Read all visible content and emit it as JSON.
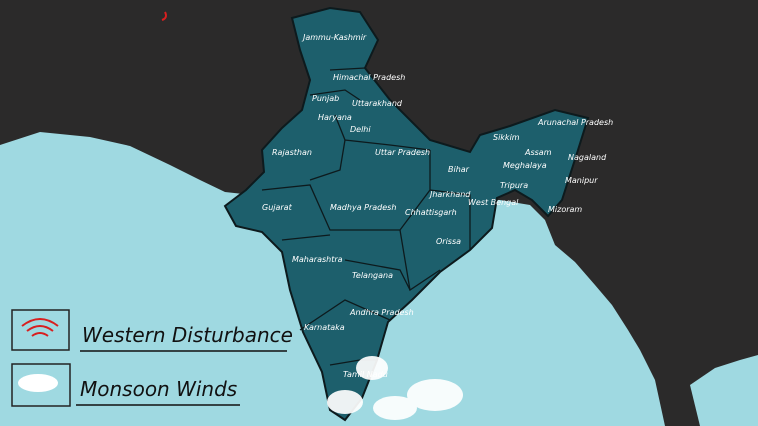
{
  "colors": {
    "land_dark": "#2b2a2a",
    "sea": "#9fd9e1",
    "india": "#1d5f6c",
    "border": "#0d1a1d",
    "disturbance": "#d81f1f",
    "cloud": "#ffffff"
  },
  "legend": {
    "items": [
      {
        "label": "Western Disturbance",
        "icon": "red-wave-icon"
      },
      {
        "label": "Monsoon Winds",
        "icon": "cloud-icon"
      }
    ]
  },
  "states": [
    {
      "name": "Jammu-Kashmir"
    },
    {
      "name": "Himachal Pradesh"
    },
    {
      "name": "Punjab"
    },
    {
      "name": "Uttarakhand"
    },
    {
      "name": "Haryana"
    },
    {
      "name": "Delhi"
    },
    {
      "name": "Rajasthan"
    },
    {
      "name": "Uttar Pradesh"
    },
    {
      "name": "Bihar"
    },
    {
      "name": "Sikkim"
    },
    {
      "name": "Arunachal Pradesh"
    },
    {
      "name": "Assam"
    },
    {
      "name": "Meghalaya"
    },
    {
      "name": "Nagaland"
    },
    {
      "name": "Manipur"
    },
    {
      "name": "Tripura"
    },
    {
      "name": "Mizoram"
    },
    {
      "name": "Jharkhand"
    },
    {
      "name": "West Bengal"
    },
    {
      "name": "Gujarat"
    },
    {
      "name": "Madhya Pradesh"
    },
    {
      "name": "Chhattisgarh"
    },
    {
      "name": "Orissa"
    },
    {
      "name": "Maharashtra"
    },
    {
      "name": "Telangana"
    },
    {
      "name": "Andhra Pradesh"
    },
    {
      "name": "Karnataka"
    },
    {
      "name": "Tamil Nadu"
    }
  ]
}
